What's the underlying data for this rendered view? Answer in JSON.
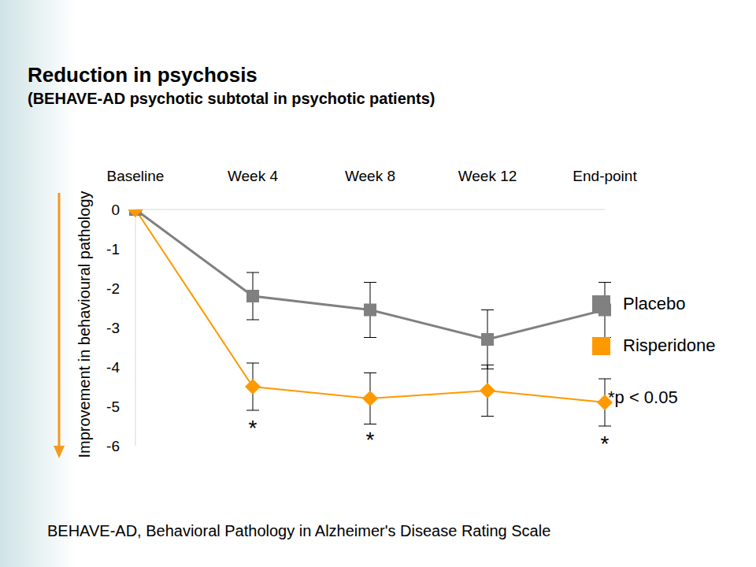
{
  "chart_data": {
    "type": "line",
    "title": "Reduction in psychosis",
    "subtitle": "(BEHAVE-AD psychotic subtotal in psychotic patients)",
    "y_label": "Improvement in behavioural pathology",
    "footnote": "BEHAVE-AD, Behavioral Pathology in Alzheimer's Disease Rating Scale",
    "categories": [
      "Baseline",
      "Week 4",
      "Week 8",
      "Week 12",
      "End-point"
    ],
    "series": [
      {
        "name": "Placebo",
        "color": "#808080",
        "marker": "square",
        "values": [
          0,
          -2.2,
          -2.55,
          -3.3,
          -2.55
        ],
        "errors": [
          null,
          0.6,
          0.7,
          0.75,
          0.7
        ]
      },
      {
        "name": "Risperidone",
        "color": "#ff9900",
        "marker": "diamond",
        "values": [
          0,
          -4.5,
          -4.8,
          -4.6,
          -4.9
        ],
        "errors": [
          null,
          0.6,
          0.65,
          0.65,
          0.6
        ]
      }
    ],
    "annotations": [
      {
        "category": "Week 4",
        "text": "*"
      },
      {
        "category": "Week 8",
        "text": "*"
      },
      {
        "category": "End-point",
        "text": "*"
      }
    ],
    "significance_note": "*p < 0.05",
    "ylim": [
      -6,
      0
    ],
    "yticks": [
      0,
      -1,
      -2,
      -3,
      -4,
      -5,
      -6
    ],
    "grid": false,
    "legend": "right"
  }
}
